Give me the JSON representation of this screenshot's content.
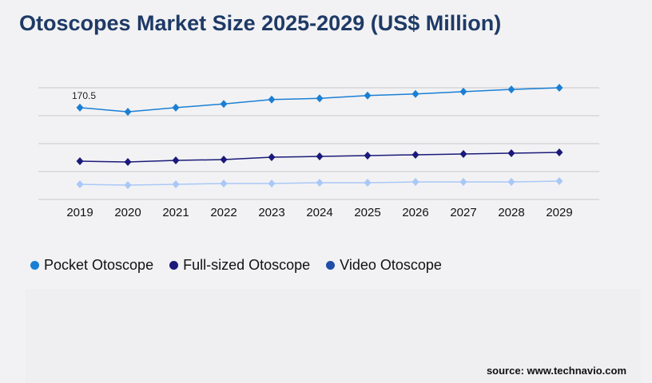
{
  "chart_data": {
    "type": "line",
    "title": "Otoscopes Market Size 2025-2029 (US$ Million)",
    "x": [
      "2019",
      "2020",
      "2021",
      "2022",
      "2023",
      "2024",
      "2025",
      "2026",
      "2027",
      "2028",
      "2029"
    ],
    "ylim": [
      6,
      206
    ],
    "gridlines": 5,
    "series": [
      {
        "name": "Pocket Otoscope",
        "color": "#1a7fd4",
        "legend_color": "#1a7fd4",
        "values": [
          170.5,
          163,
          170.5,
          177,
          185,
          187,
          192,
          195,
          199,
          203,
          206
        ]
      },
      {
        "name": "Full-sized Otoscope",
        "color": "#1b1a7a",
        "legend_color": "#1b1a7a",
        "values": [
          74.6,
          73.1,
          76,
          77.4,
          81.7,
          83.1,
          84.6,
          86,
          87.4,
          88.9,
          90.3
        ]
      },
      {
        "name": "Video Otoscope",
        "color": "#a9c8f7",
        "legend_color": "#1f4ea8",
        "values": [
          33.1,
          31.7,
          33.1,
          34.6,
          34.6,
          36,
          36,
          37.4,
          37.4,
          37.4,
          38.9
        ]
      }
    ],
    "annotations": [
      {
        "series": 0,
        "index": 0,
        "text": "170.5"
      }
    ],
    "legend_position": "bottom-left"
  },
  "source": "source: www.technavio.com"
}
